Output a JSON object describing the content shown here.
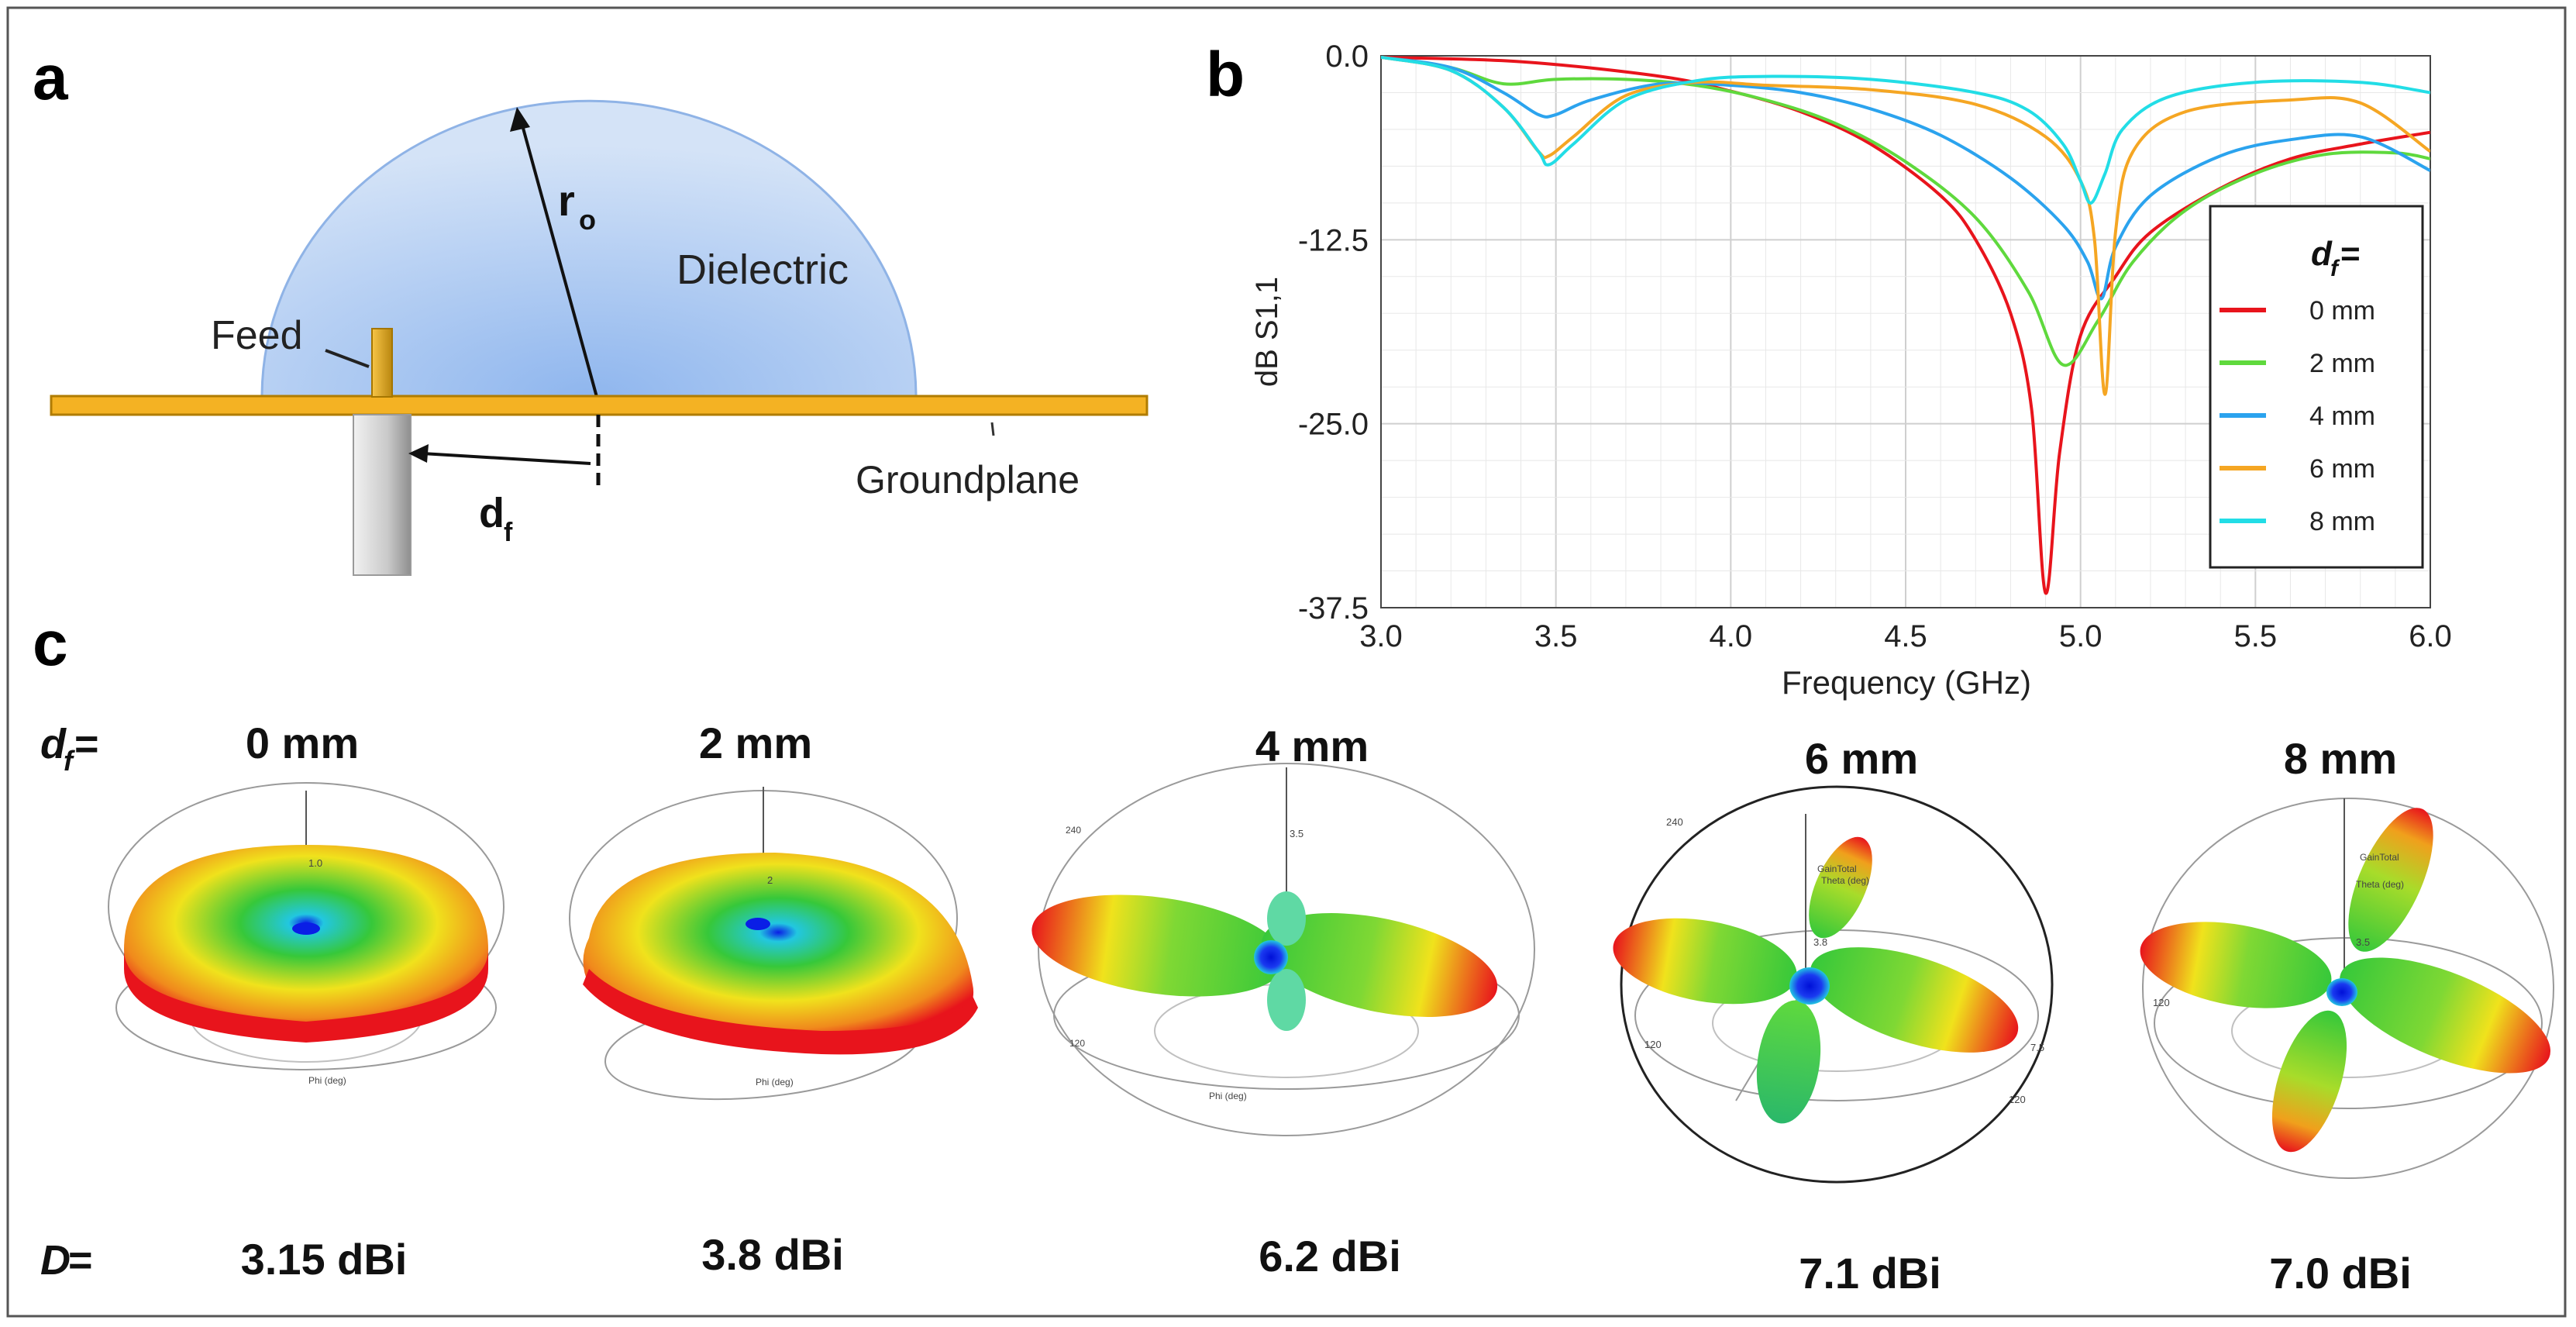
{
  "panel_labels": {
    "a": "a",
    "b": "b",
    "c": "c"
  },
  "schematic": {
    "dielectric_label": "Dielectric",
    "feed_label": "Feed",
    "groundplane_label": "Groundplane",
    "radius_label": "r",
    "radius_subscript": "o",
    "offset_label": "d",
    "offset_subscript": "f",
    "colors": {
      "dielectric_edge": "#8fb3e6",
      "dielectric_center": "#9cc2f2",
      "dielectric_outer": "#cfe0f6",
      "groundplane": "#f4b223",
      "groundplane_edge": "#b07c00",
      "feed": "#d9a21b",
      "probe": "#c8c8c8"
    }
  },
  "chart_data": {
    "type": "line",
    "xlabel": "Frequency (GHz)",
    "ylabel": "dB S1,1",
    "xlim": [
      3.0,
      6.0
    ],
    "ylim": [
      -37.5,
      0.0
    ],
    "x_ticks": [
      "3.0",
      "3.5",
      "4.0",
      "4.5",
      "5.0",
      "5.5",
      "6.0"
    ],
    "y_ticks": [
      "0.0",
      "-12.5",
      "-25.0",
      "-37.5"
    ],
    "grid": true,
    "legend_title": "d",
    "legend_title_sub": "f",
    "legend_title_suffix": " =",
    "legend_position": "right",
    "series": [
      {
        "name": "0 mm",
        "color": "#e8141c",
        "points": [
          [
            3.0,
            -0.1
          ],
          [
            3.4,
            -0.4
          ],
          [
            3.8,
            -1.4
          ],
          [
            4.0,
            -2.4
          ],
          [
            4.2,
            -3.8
          ],
          [
            4.4,
            -6.0
          ],
          [
            4.6,
            -9.5
          ],
          [
            4.7,
            -12.5
          ],
          [
            4.8,
            -17.5
          ],
          [
            4.86,
            -24.0
          ],
          [
            4.9,
            -36.5
          ],
          [
            4.94,
            -27.0
          ],
          [
            5.0,
            -19.0
          ],
          [
            5.1,
            -15.0
          ],
          [
            5.2,
            -12.0
          ],
          [
            5.4,
            -9.0
          ],
          [
            5.6,
            -7.0
          ],
          [
            5.8,
            -6.0
          ],
          [
            6.0,
            -5.2
          ]
        ]
      },
      {
        "name": "2 mm",
        "color": "#5fd93d",
        "points": [
          [
            3.0,
            -0.1
          ],
          [
            3.2,
            -0.8
          ],
          [
            3.35,
            -1.9
          ],
          [
            3.5,
            -1.6
          ],
          [
            3.7,
            -1.6
          ],
          [
            3.9,
            -2.0
          ],
          [
            4.1,
            -3.0
          ],
          [
            4.3,
            -4.6
          ],
          [
            4.5,
            -7.2
          ],
          [
            4.7,
            -11.0
          ],
          [
            4.85,
            -16.0
          ],
          [
            4.95,
            -21.0
          ],
          [
            5.05,
            -18.0
          ],
          [
            5.15,
            -14.0
          ],
          [
            5.3,
            -10.5
          ],
          [
            5.5,
            -8.0
          ],
          [
            5.7,
            -6.7
          ],
          [
            5.9,
            -6.6
          ],
          [
            6.0,
            -7.0
          ]
        ]
      },
      {
        "name": "4 mm",
        "color": "#2ba3ee",
        "points": [
          [
            3.0,
            -0.1
          ],
          [
            3.2,
            -0.8
          ],
          [
            3.35,
            -2.5
          ],
          [
            3.45,
            -4.0
          ],
          [
            3.5,
            -4.0
          ],
          [
            3.6,
            -3.0
          ],
          [
            3.8,
            -1.9
          ],
          [
            4.0,
            -2.0
          ],
          [
            4.2,
            -2.5
          ],
          [
            4.4,
            -3.6
          ],
          [
            4.6,
            -5.4
          ],
          [
            4.8,
            -8.3
          ],
          [
            4.95,
            -11.5
          ],
          [
            5.02,
            -14.0
          ],
          [
            5.06,
            -16.5
          ],
          [
            5.1,
            -13.0
          ],
          [
            5.2,
            -9.5
          ],
          [
            5.4,
            -6.8
          ],
          [
            5.6,
            -5.7
          ],
          [
            5.8,
            -5.5
          ],
          [
            6.0,
            -7.8
          ]
        ]
      },
      {
        "name": "6 mm",
        "color": "#f5a623",
        "points": [
          [
            3.0,
            -0.1
          ],
          [
            3.2,
            -1.0
          ],
          [
            3.35,
            -3.5
          ],
          [
            3.45,
            -6.5
          ],
          [
            3.48,
            -6.8
          ],
          [
            3.55,
            -5.5
          ],
          [
            3.7,
            -2.7
          ],
          [
            3.9,
            -1.8
          ],
          [
            4.1,
            -2.0
          ],
          [
            4.4,
            -2.3
          ],
          [
            4.7,
            -3.3
          ],
          [
            4.9,
            -5.5
          ],
          [
            5.0,
            -8.5
          ],
          [
            5.04,
            -12.5
          ],
          [
            5.07,
            -23.0
          ],
          [
            5.1,
            -12.0
          ],
          [
            5.15,
            -6.5
          ],
          [
            5.3,
            -3.8
          ],
          [
            5.6,
            -3.0
          ],
          [
            5.8,
            -3.2
          ],
          [
            6.0,
            -6.5
          ]
        ]
      },
      {
        "name": "8 mm",
        "color": "#22dde6",
        "points": [
          [
            3.0,
            -0.1
          ],
          [
            3.2,
            -1.0
          ],
          [
            3.35,
            -3.5
          ],
          [
            3.45,
            -6.5
          ],
          [
            3.48,
            -7.4
          ],
          [
            3.55,
            -6.0
          ],
          [
            3.7,
            -3.0
          ],
          [
            3.9,
            -1.7
          ],
          [
            4.1,
            -1.4
          ],
          [
            4.4,
            -1.6
          ],
          [
            4.7,
            -2.5
          ],
          [
            4.85,
            -3.7
          ],
          [
            4.95,
            -6.0
          ],
          [
            5.0,
            -8.5
          ],
          [
            5.03,
            -10.0
          ],
          [
            5.07,
            -8.0
          ],
          [
            5.12,
            -5.0
          ],
          [
            5.25,
            -2.8
          ],
          [
            5.5,
            -1.8
          ],
          [
            5.8,
            -1.8
          ],
          [
            6.0,
            -2.5
          ]
        ]
      }
    ]
  },
  "patterns": {
    "df_label": "d",
    "df_sub": "f",
    "df_suffix": " =",
    "d_label": "D",
    "d_suffix": " =",
    "items": [
      {
        "offset": "0 mm",
        "directivity": "3.15 dBi"
      },
      {
        "offset": "2 mm",
        "directivity": "3.8 dBi"
      },
      {
        "offset": "4 mm",
        "directivity": "6.2 dBi"
      },
      {
        "offset": "6 mm",
        "directivity": "7.1 dBi"
      },
      {
        "offset": "8 mm",
        "directivity": "7.0 dBi"
      }
    ],
    "tiny_labels": {
      "phi": "Phi (deg)",
      "theta": "Theta (deg)",
      "gain": "GainTotal",
      "v120": "120",
      "v240": "240",
      "v75": "7.5",
      "v35": "3.5",
      "v38": "3.8",
      "v10": "1.0",
      "v2": "2"
    },
    "colors": {
      "red": "#e8141c",
      "yellow": "#f0e21c",
      "green": "#36c83a",
      "cyan": "#22c7e0",
      "blue": "#0a1ee6"
    }
  }
}
